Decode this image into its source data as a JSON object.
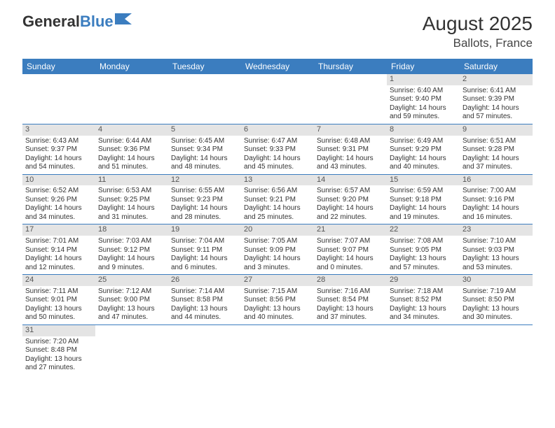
{
  "logo": {
    "part1": "General",
    "part2": "Blue"
  },
  "title": "August 2025",
  "location": "Ballots, France",
  "weekdays": [
    "Sunday",
    "Monday",
    "Tuesday",
    "Wednesday",
    "Thursday",
    "Friday",
    "Saturday"
  ],
  "colors": {
    "header_bg": "#3b7dbf",
    "header_text": "#ffffff",
    "daynum_bg": "#e4e4e4",
    "row_border": "#3b7dbf",
    "text": "#333333"
  },
  "first_weekday_index": 5,
  "days_in_month": 31,
  "days": {
    "1": {
      "sunrise": "6:40 AM",
      "sunset": "9:40 PM",
      "daylight": "14 hours and 59 minutes."
    },
    "2": {
      "sunrise": "6:41 AM",
      "sunset": "9:39 PM",
      "daylight": "14 hours and 57 minutes."
    },
    "3": {
      "sunrise": "6:43 AM",
      "sunset": "9:37 PM",
      "daylight": "14 hours and 54 minutes."
    },
    "4": {
      "sunrise": "6:44 AM",
      "sunset": "9:36 PM",
      "daylight": "14 hours and 51 minutes."
    },
    "5": {
      "sunrise": "6:45 AM",
      "sunset": "9:34 PM",
      "daylight": "14 hours and 48 minutes."
    },
    "6": {
      "sunrise": "6:47 AM",
      "sunset": "9:33 PM",
      "daylight": "14 hours and 45 minutes."
    },
    "7": {
      "sunrise": "6:48 AM",
      "sunset": "9:31 PM",
      "daylight": "14 hours and 43 minutes."
    },
    "8": {
      "sunrise": "6:49 AM",
      "sunset": "9:29 PM",
      "daylight": "14 hours and 40 minutes."
    },
    "9": {
      "sunrise": "6:51 AM",
      "sunset": "9:28 PM",
      "daylight": "14 hours and 37 minutes."
    },
    "10": {
      "sunrise": "6:52 AM",
      "sunset": "9:26 PM",
      "daylight": "14 hours and 34 minutes."
    },
    "11": {
      "sunrise": "6:53 AM",
      "sunset": "9:25 PM",
      "daylight": "14 hours and 31 minutes."
    },
    "12": {
      "sunrise": "6:55 AM",
      "sunset": "9:23 PM",
      "daylight": "14 hours and 28 minutes."
    },
    "13": {
      "sunrise": "6:56 AM",
      "sunset": "9:21 PM",
      "daylight": "14 hours and 25 minutes."
    },
    "14": {
      "sunrise": "6:57 AM",
      "sunset": "9:20 PM",
      "daylight": "14 hours and 22 minutes."
    },
    "15": {
      "sunrise": "6:59 AM",
      "sunset": "9:18 PM",
      "daylight": "14 hours and 19 minutes."
    },
    "16": {
      "sunrise": "7:00 AM",
      "sunset": "9:16 PM",
      "daylight": "14 hours and 16 minutes."
    },
    "17": {
      "sunrise": "7:01 AM",
      "sunset": "9:14 PM",
      "daylight": "14 hours and 12 minutes."
    },
    "18": {
      "sunrise": "7:03 AM",
      "sunset": "9:12 PM",
      "daylight": "14 hours and 9 minutes."
    },
    "19": {
      "sunrise": "7:04 AM",
      "sunset": "9:11 PM",
      "daylight": "14 hours and 6 minutes."
    },
    "20": {
      "sunrise": "7:05 AM",
      "sunset": "9:09 PM",
      "daylight": "14 hours and 3 minutes."
    },
    "21": {
      "sunrise": "7:07 AM",
      "sunset": "9:07 PM",
      "daylight": "14 hours and 0 minutes."
    },
    "22": {
      "sunrise": "7:08 AM",
      "sunset": "9:05 PM",
      "daylight": "13 hours and 57 minutes."
    },
    "23": {
      "sunrise": "7:10 AM",
      "sunset": "9:03 PM",
      "daylight": "13 hours and 53 minutes."
    },
    "24": {
      "sunrise": "7:11 AM",
      "sunset": "9:01 PM",
      "daylight": "13 hours and 50 minutes."
    },
    "25": {
      "sunrise": "7:12 AM",
      "sunset": "9:00 PM",
      "daylight": "13 hours and 47 minutes."
    },
    "26": {
      "sunrise": "7:14 AM",
      "sunset": "8:58 PM",
      "daylight": "13 hours and 44 minutes."
    },
    "27": {
      "sunrise": "7:15 AM",
      "sunset": "8:56 PM",
      "daylight": "13 hours and 40 minutes."
    },
    "28": {
      "sunrise": "7:16 AM",
      "sunset": "8:54 PM",
      "daylight": "13 hours and 37 minutes."
    },
    "29": {
      "sunrise": "7:18 AM",
      "sunset": "8:52 PM",
      "daylight": "13 hours and 34 minutes."
    },
    "30": {
      "sunrise": "7:19 AM",
      "sunset": "8:50 PM",
      "daylight": "13 hours and 30 minutes."
    },
    "31": {
      "sunrise": "7:20 AM",
      "sunset": "8:48 PM",
      "daylight": "13 hours and 27 minutes."
    }
  },
  "labels": {
    "sunrise": "Sunrise:",
    "sunset": "Sunset:",
    "daylight": "Daylight:"
  }
}
